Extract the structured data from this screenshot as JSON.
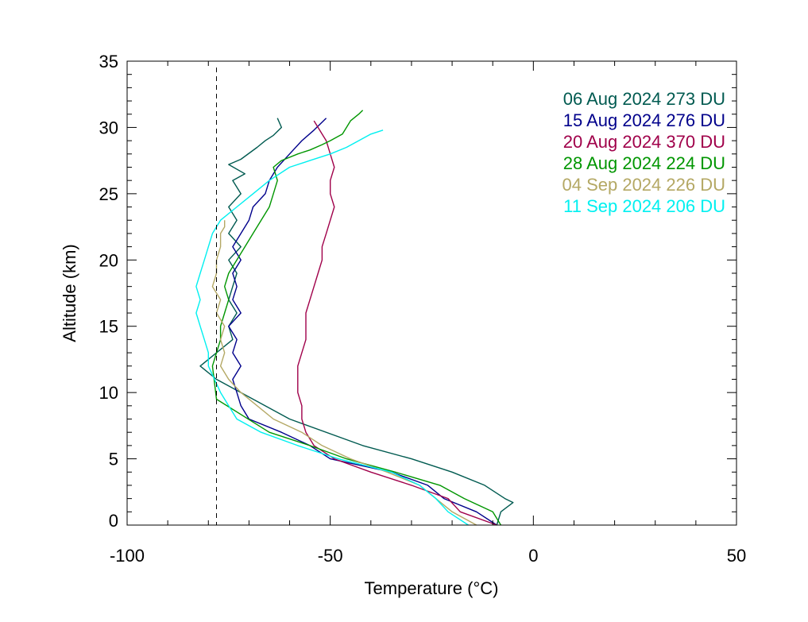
{
  "chart_data": {
    "type": "line",
    "xlabel": "Temperature (°C)",
    "ylabel": "Altitude (km)",
    "xlim": [
      -100,
      50
    ],
    "ylim": [
      0,
      35
    ],
    "x_ticks": [
      -100,
      -50,
      0,
      50
    ],
    "y_ticks": [
      0,
      5,
      10,
      15,
      20,
      25,
      30,
      35
    ],
    "x_tick_labels": [
      "-100",
      "-50",
      "0",
      "50"
    ],
    "y_tick_labels": [
      "0",
      "5",
      "10",
      "15",
      "20",
      "25",
      "30",
      "35"
    ],
    "reference_line": {
      "x": -78,
      "style": "dashed"
    },
    "legend_position": "top-right",
    "series": [
      {
        "name": "06 Aug 2024 273 DU",
        "color": "#005a50",
        "x": [
          -9,
          -8,
          -5,
          -7,
          -12,
          -20,
          -30,
          -42,
          -60,
          -78,
          -82,
          -78,
          -74,
          -75,
          -73,
          -75,
          -74,
          -73,
          -75,
          -72,
          -75,
          -73,
          -75,
          -72,
          -74,
          -71,
          -75,
          -72,
          -68,
          -66,
          -64,
          -62,
          -63
        ],
        "y": [
          0,
          1,
          1.7,
          2,
          3,
          4,
          5,
          6,
          8,
          11,
          12,
          13,
          14,
          15,
          16,
          17,
          18,
          19,
          20,
          21,
          22,
          23,
          24,
          25,
          26,
          26.5,
          27.2,
          27.6,
          28.5,
          29,
          29.4,
          30,
          30.7
        ]
      },
      {
        "name": "15 Aug 2024 276 DU",
        "color": "#00008b",
        "x": [
          -9,
          -14,
          -22,
          -26,
          -35,
          -50,
          -55,
          -62,
          -70,
          -72,
          -73,
          -74,
          -72,
          -74,
          -73,
          -75,
          -72,
          -74,
          -73,
          -74,
          -72,
          -74,
          -72,
          -70,
          -69,
          -66,
          -65,
          -63,
          -60,
          -57,
          -54,
          -51
        ],
        "y": [
          0,
          1,
          2,
          3,
          4,
          5,
          6,
          7,
          8,
          9,
          10,
          11,
          12,
          13,
          14,
          15,
          16,
          17,
          18,
          19,
          20,
          21,
          22,
          23,
          24,
          25,
          26,
          27,
          28,
          29,
          29.8,
          30.7
        ]
      },
      {
        "name": "20 Aug 2024 370 DU",
        "color": "#a0004a",
        "x": [
          -9,
          -18,
          -21,
          -30,
          -40,
          -49,
          -54,
          -56,
          -57,
          -57,
          -58,
          -58,
          -58,
          -57,
          -56,
          -56,
          -56,
          -55,
          -54,
          -53,
          -52,
          -52,
          -51,
          -50,
          -49,
          -50,
          -50,
          -49,
          -50,
          -51,
          -52,
          -53,
          -54
        ],
        "y": [
          0,
          1,
          2,
          3,
          4,
          5,
          6,
          7,
          8,
          9,
          10,
          11,
          12,
          13,
          14,
          15,
          16,
          17,
          18,
          19,
          20,
          21,
          22,
          23,
          24,
          25,
          26,
          27,
          28,
          29,
          29.5,
          30,
          30.5
        ]
      },
      {
        "name": "28 Aug 2024 224 DU",
        "color": "#009600",
        "x": [
          -8,
          -10,
          -17,
          -23,
          -34,
          -46,
          -55,
          -65,
          -78,
          -79,
          -78,
          -77,
          -77,
          -76,
          -75,
          -76,
          -75,
          -73,
          -71,
          -69,
          -67,
          -65,
          -64,
          -63,
          -64,
          -62,
          -58,
          -55,
          -52,
          -50,
          -47,
          -45,
          -43,
          -42
        ],
        "y": [
          0,
          1,
          2,
          3,
          4,
          5,
          6,
          7,
          9.5,
          12,
          13,
          14,
          15,
          16,
          17,
          18,
          19,
          20,
          21,
          22,
          23,
          24,
          25,
          26,
          27,
          27.5,
          28,
          28.3,
          28.7,
          29,
          29.5,
          30.5,
          31,
          31.3
        ]
      },
      {
        "name": "04 Sep 2024 226 DU",
        "color": "#b4a864",
        "x": [
          -14,
          -20,
          -24,
          -28,
          -36,
          -45,
          -52,
          -57,
          -64,
          -72,
          -75,
          -77,
          -76,
          -77,
          -76,
          -78,
          -77,
          -79,
          -78,
          -78,
          -77,
          -77,
          -76,
          -76
        ],
        "y": [
          0,
          1,
          2,
          3,
          4,
          5,
          6,
          7,
          8,
          10,
          11,
          12,
          13,
          14,
          15,
          16,
          17,
          18,
          19,
          20,
          21,
          22,
          22.5,
          23
        ]
      },
      {
        "name": "11 Sep 2024 206 DU",
        "color": "#00f0f0",
        "x": [
          -16,
          -21,
          -24,
          -28,
          -35,
          -48,
          -58,
          -67,
          -73,
          -75,
          -77,
          -80,
          -80,
          -81,
          -82,
          -83,
          -82,
          -83,
          -82,
          -81,
          -80,
          -79,
          -77,
          -73,
          -69,
          -65,
          -60,
          -55,
          -50,
          -46,
          -43,
          -40,
          -37
        ],
        "y": [
          0,
          1,
          2,
          3,
          4,
          5,
          6,
          7,
          8,
          9,
          10,
          12,
          13,
          14,
          15,
          16,
          17,
          18,
          19,
          20,
          21,
          22,
          23,
          24,
          25,
          26,
          27,
          27.5,
          28,
          28.5,
          29,
          29.5,
          29.8
        ]
      }
    ]
  }
}
